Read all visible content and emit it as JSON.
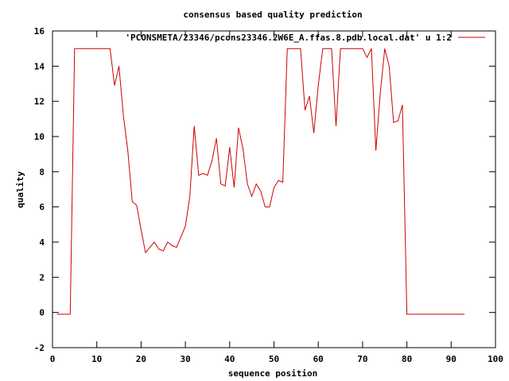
{
  "chart_data": {
    "type": "line",
    "title": "consensus based quality prediction",
    "xlabel": "sequence position",
    "ylabel": "quality",
    "xlim": [
      0,
      100
    ],
    "ylim": [
      -2,
      16
    ],
    "xticks": [
      0,
      10,
      20,
      30,
      40,
      50,
      60,
      70,
      80,
      90,
      100
    ],
    "yticks": [
      -2,
      0,
      2,
      4,
      6,
      8,
      10,
      12,
      14,
      16
    ],
    "grid": false,
    "legend": "top-right",
    "series": [
      {
        "name": "'PCONSMETA/23346/pcons23346.2W6E_A.ffas.8.pdb.local.dat' u 1:2",
        "color": "#cc0000",
        "x": [
          1,
          2,
          3,
          4,
          5,
          6,
          7,
          8,
          9,
          10,
          11,
          12,
          13,
          14,
          15,
          16,
          17,
          18,
          19,
          20,
          21,
          22,
          23,
          24,
          25,
          26,
          27,
          28,
          29,
          30,
          31,
          32,
          33,
          34,
          35,
          36,
          37,
          38,
          39,
          40,
          41,
          42,
          43,
          44,
          45,
          46,
          47,
          48,
          49,
          50,
          51,
          52,
          53,
          54,
          55,
          56,
          57,
          58,
          59,
          60,
          61,
          62,
          63,
          64,
          65,
          66,
          67,
          68,
          69,
          70,
          71,
          72,
          73,
          74,
          75,
          76,
          77,
          78,
          79,
          80,
          81,
          82,
          83,
          84,
          85,
          86,
          87,
          88,
          89,
          90,
          91,
          92,
          93
        ],
        "y": [
          -0.1,
          -0.1,
          -0.1,
          -0.1,
          15.0,
          15.0,
          15.0,
          15.0,
          15.0,
          15.0,
          15.0,
          15.0,
          15.0,
          12.9,
          14.0,
          11.2,
          9.2,
          6.3,
          6.1,
          4.7,
          3.4,
          3.7,
          4.0,
          3.6,
          3.5,
          4.0,
          3.8,
          3.7,
          4.3,
          4.9,
          6.6,
          10.6,
          7.8,
          7.9,
          7.8,
          8.6,
          9.9,
          7.3,
          7.2,
          9.4,
          7.1,
          10.5,
          9.3,
          7.3,
          6.6,
          7.3,
          6.9,
          6.0,
          6.0,
          7.1,
          7.5,
          7.4,
          15.0,
          15.0,
          15.0,
          15.0,
          11.5,
          12.3,
          10.2,
          12.9,
          15.0,
          15.0,
          15.0,
          10.6,
          15.0,
          15.0,
          15.0,
          15.0,
          15.0,
          15.0,
          14.5,
          15.0,
          9.2,
          12.5,
          15.0,
          14.0,
          10.8,
          10.9,
          11.8,
          -0.1,
          -0.1,
          -0.1,
          -0.1,
          -0.1,
          -0.1,
          -0.1,
          -0.1,
          -0.1,
          -0.1,
          -0.1,
          -0.1,
          -0.1,
          -0.1
        ]
      }
    ]
  }
}
